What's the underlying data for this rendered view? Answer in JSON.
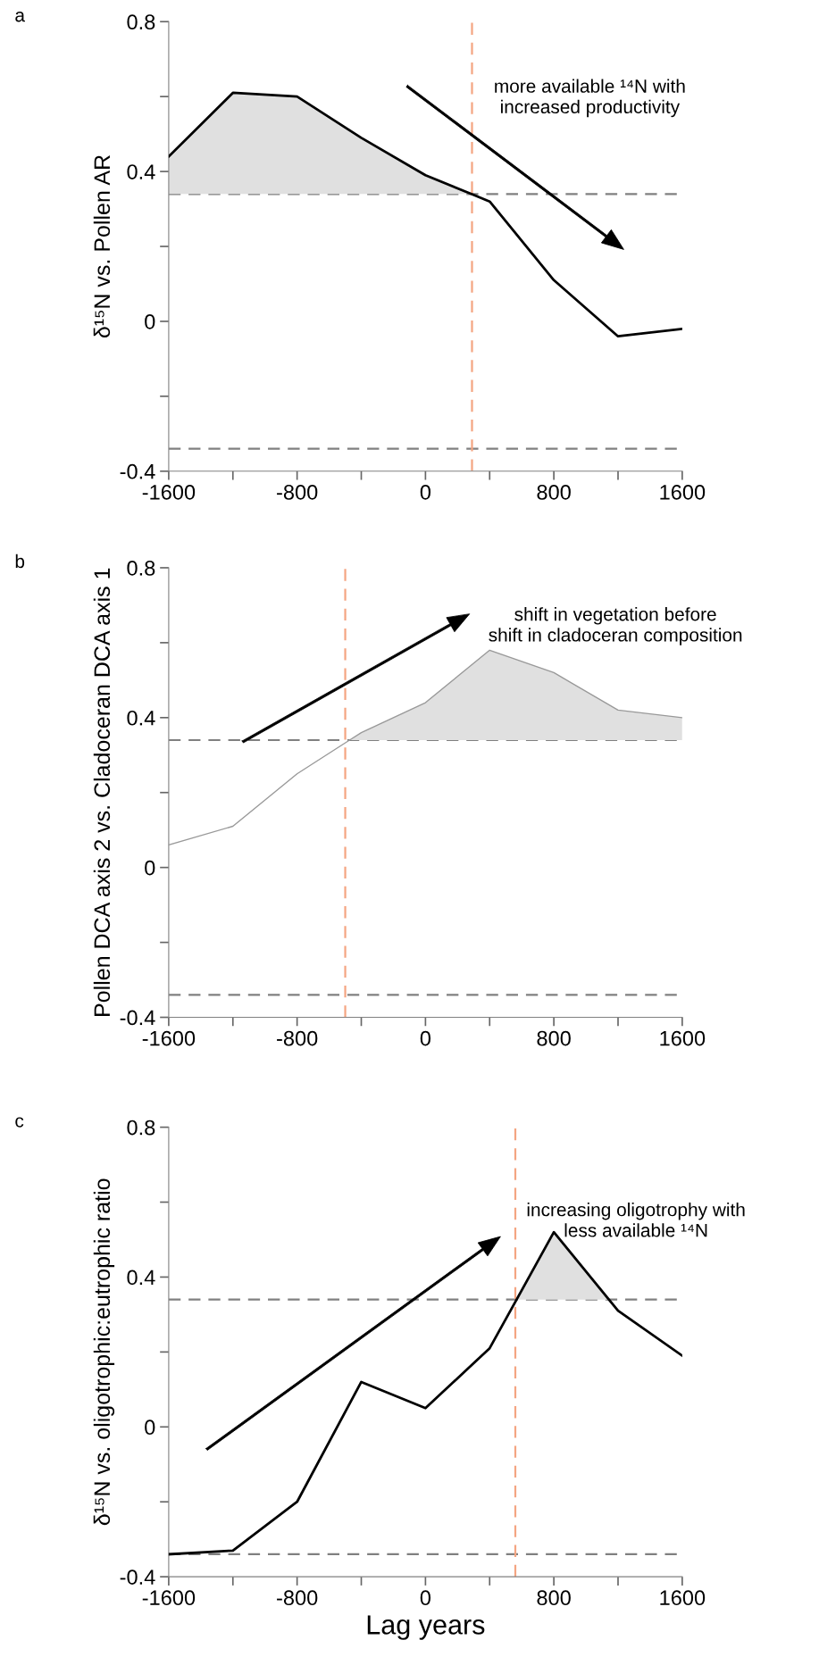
{
  "chart_data": [
    {
      "type": "line",
      "title": "a",
      "ylabel": "δ¹⁵N vs. Pollen AR",
      "series": [
        {
          "color": "#000000",
          "x": [
            -1600,
            -1200,
            -800,
            -400,
            0,
            286,
            400,
            800,
            1200,
            1600
          ],
          "values": [
            0.44,
            0.61,
            0.6,
            0.49,
            0.39,
            0.34,
            0.32,
            0.11,
            -0.04,
            -0.02
          ],
          "lower": [
            0.34,
            0.34,
            0.34,
            0.34,
            0.34,
            0.34,
            null,
            null,
            null,
            null
          ],
          "upper": [
            0.44,
            0.61,
            0.6,
            0.49,
            0.39,
            0.34,
            null,
            null,
            null,
            null
          ]
        }
      ],
      "xlim": [
        -1600,
        1600
      ],
      "xticks": [
        -1600,
        {
          "value": -1200,
          "label": null
        },
        -800,
        {
          "value": -400,
          "label": null
        },
        0,
        {
          "value": 400,
          "label": null
        },
        800,
        {
          "value": 1200,
          "label": null
        },
        1600
      ],
      "ylim": [
        -0.4,
        0.8
      ],
      "yticks": [
        -0.4,
        {
          "value": -0.2,
          "label": null
        },
        0,
        {
          "value": 0.2,
          "label": null
        },
        0.4,
        {
          "value": 0.6,
          "label": null
        },
        0.8
      ],
      "ref_lines": [
        {
          "axis": "y",
          "value": 0.34,
          "color": "#808080",
          "line_style": "dashed"
        },
        {
          "axis": "y",
          "value": -0.34,
          "color": "#808080",
          "line_style": "dashed"
        },
        {
          "axis": "x",
          "value": 290,
          "color": "#f4a582",
          "line_style": "dashed"
        }
      ],
      "annotations": [
        "more available ¹⁴N with\nincreased productivity"
      ],
      "grid": false,
      "legend": false
    },
    {
      "type": "line",
      "title": "b",
      "ylabel": "Pollen DCA axis 2 vs. Cladoceran DCA axis 1",
      "series": [
        {
          "color": "#999999",
          "x": [
            -1600,
            -1200,
            -800,
            -473,
            -400,
            0,
            400,
            800,
            1200,
            1600
          ],
          "values": [
            0.06,
            0.11,
            0.25,
            0.34,
            0.36,
            0.44,
            0.58,
            0.52,
            0.42,
            0.4
          ],
          "lower": [
            null,
            null,
            null,
            0.34,
            0.34,
            0.34,
            0.34,
            0.34,
            0.34,
            0.34
          ],
          "upper": [
            null,
            null,
            null,
            0.34,
            0.36,
            0.44,
            0.58,
            0.52,
            0.42,
            0.4
          ]
        }
      ],
      "xlim": [
        -1600,
        1600
      ],
      "xticks": [
        -1600,
        {
          "value": -1200,
          "label": null
        },
        -800,
        {
          "value": -400,
          "label": null
        },
        0,
        {
          "value": 400,
          "label": null
        },
        800,
        {
          "value": 1200,
          "label": null
        },
        1600
      ],
      "ylim": [
        -0.4,
        0.8
      ],
      "yticks": [
        -0.4,
        {
          "value": -0.2,
          "label": null
        },
        0,
        {
          "value": 0.2,
          "label": null
        },
        0.4,
        {
          "value": 0.6,
          "label": null
        },
        0.8
      ],
      "ref_lines": [
        {
          "axis": "y",
          "value": 0.34,
          "color": "#808080",
          "line_style": "dashed"
        },
        {
          "axis": "y",
          "value": -0.34,
          "color": "#808080",
          "line_style": "dashed"
        },
        {
          "axis": "x",
          "value": -500,
          "color": "#f4a582",
          "line_style": "dashed"
        }
      ],
      "annotations": [
        "shift in vegetation before\nshift in cladoceran composition"
      ],
      "grid": false,
      "legend": false
    },
    {
      "type": "line",
      "title": "c",
      "xlabel": "Lag years",
      "ylabel": "δ¹⁵N vs. oligotrophic:eutrophic ratio",
      "series": [
        {
          "color": "#000000",
          "x": [
            -1600,
            -1200,
            -800,
            -400,
            0,
            400,
            568,
            800,
            1143,
            1200,
            1600
          ],
          "values": [
            -0.34,
            -0.33,
            -0.2,
            0.12,
            0.05,
            0.21,
            0.34,
            0.52,
            0.34,
            0.31,
            0.19
          ],
          "lower": [
            null,
            null,
            null,
            null,
            null,
            null,
            0.34,
            0.34,
            0.34,
            null,
            null
          ],
          "upper": [
            null,
            null,
            null,
            null,
            null,
            null,
            0.34,
            0.52,
            0.34,
            null,
            null
          ]
        }
      ],
      "xlim": [
        -1600,
        1600
      ],
      "xticks": [
        -1600,
        {
          "value": -1200,
          "label": null
        },
        -800,
        {
          "value": -400,
          "label": null
        },
        0,
        {
          "value": 400,
          "label": null
        },
        800,
        {
          "value": 1200,
          "label": null
        },
        1600
      ],
      "ylim": [
        -0.4,
        0.8
      ],
      "yticks": [
        -0.4,
        {
          "value": -0.2,
          "label": null
        },
        0,
        {
          "value": 0.2,
          "label": null
        },
        0.4,
        {
          "value": 0.6,
          "label": null
        },
        0.8
      ],
      "ref_lines": [
        {
          "axis": "y",
          "value": 0.34,
          "color": "#808080",
          "line_style": "dashed"
        },
        {
          "axis": "y",
          "value": -0.34,
          "color": "#808080",
          "line_style": "dashed"
        },
        {
          "axis": "x",
          "value": 560,
          "color": "#f4a582",
          "line_style": "dashed"
        }
      ],
      "annotations": [
        "increasing oligotrophy with\nless available ¹⁴N"
      ],
      "grid": false,
      "legend": false
    }
  ]
}
